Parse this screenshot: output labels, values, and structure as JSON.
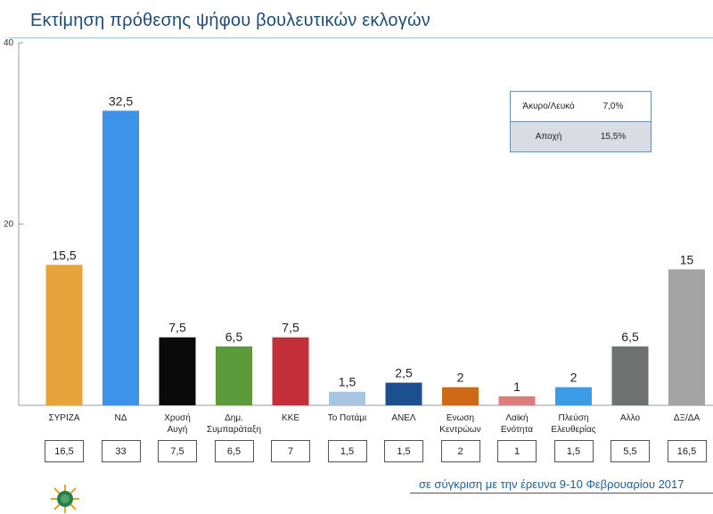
{
  "title": "Εκτίμηση πρόθεσης ψήφου βουλευτικών εκλογών",
  "legend_box": {
    "rows": [
      {
        "label": "Άκυρο/Λευκό",
        "value": "7,0%"
      },
      {
        "label": "Αποχή",
        "value": "15,5%"
      }
    ]
  },
  "footer_note": "σε σύγκριση με την έρευνα 9-10 Φεβρουαρίου 2017",
  "chart_data": {
    "type": "bar",
    "title": "Εκτίμηση πρόθεσης ψήφου βουλευτικών εκλογών",
    "xlabel": "",
    "ylabel": "",
    "ylim": [
      0,
      40
    ],
    "yticks": [
      "20",
      "40"
    ],
    "grid": false,
    "categories": [
      {
        "label": [
          "ΣΥΡΙΖΑ"
        ],
        "value": 15.5,
        "value_label": "15,5",
        "color": "#e8a43c",
        "previous": "16,5"
      },
      {
        "label": [
          "ΝΔ"
        ],
        "value": 32.5,
        "value_label": "32,5",
        "color": "#3d93e8",
        "previous": "33"
      },
      {
        "label": [
          "Χρυσή",
          "Αυγή"
        ],
        "value": 7.5,
        "value_label": "7,5",
        "color": "#0a0a0a",
        "previous": "7,5"
      },
      {
        "label": [
          "Δημ.",
          "Συμπαράταξη"
        ],
        "value": 6.5,
        "value_label": "6,5",
        "color": "#5c9a3c",
        "previous": "6,5"
      },
      {
        "label": [
          "ΚΚΕ"
        ],
        "value": 7.5,
        "value_label": "7,5",
        "color": "#c4303a",
        "previous": "7"
      },
      {
        "label": [
          "Το Ποτάμι"
        ],
        "value": 1.5,
        "value_label": "1,5",
        "color": "#a8c6e2",
        "previous": "1,5"
      },
      {
        "label": [
          "ΑΝΕΛ"
        ],
        "value": 2.5,
        "value_label": "2,5",
        "color": "#1c4f8f",
        "previous": "1,5"
      },
      {
        "label": [
          "Ενωση",
          "Κεντρώων"
        ],
        "value": 2,
        "value_label": "2",
        "color": "#cc6a1a",
        "previous": "2"
      },
      {
        "label": [
          "Λαϊκή",
          "Ενότητα"
        ],
        "value": 1,
        "value_label": "1",
        "color": "#e07b7c",
        "previous": "1"
      },
      {
        "label": [
          "Πλεύση",
          "Ελευθερίας"
        ],
        "value": 2,
        "value_label": "2",
        "color": "#3b9be6",
        "previous": "1,5"
      },
      {
        "label": [
          "Αλλο"
        ],
        "value": 6.5,
        "value_label": "6,5",
        "color": "#6e7271",
        "previous": "5,5"
      },
      {
        "label": [
          "ΔΞ/ΔΑ"
        ],
        "value": 15,
        "value_label": "15",
        "color": "#a3a3a3",
        "previous": "16,5"
      }
    ]
  }
}
